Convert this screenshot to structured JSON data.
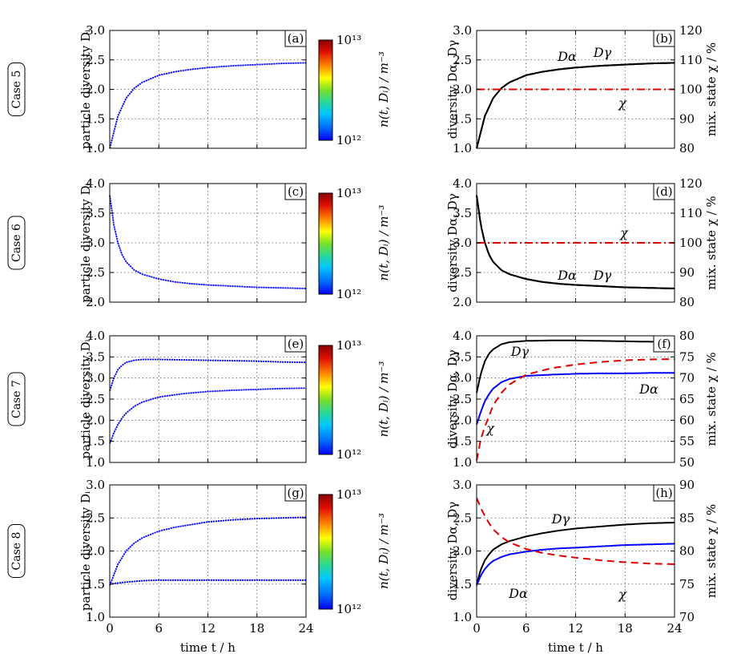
{
  "colors": {
    "dark_blue": "#0000ff",
    "red": "#e00000",
    "black": "#000000"
  },
  "colorbar": {
    "top_label": "10¹³",
    "bottom_label": "10¹²",
    "axis_label": "n(t, Dᵢ) / m⁻³",
    "stops": [
      "#0000ff",
      "#0070ff",
      "#00c8ff",
      "#28d898",
      "#78e028",
      "#ffff00",
      "#ff8000",
      "#e01000",
      "#8b0000"
    ]
  },
  "x_axis": {
    "ticks": [
      "0",
      "6",
      "12",
      "18",
      "24"
    ],
    "label": "time t / h",
    "range": [
      0,
      24
    ]
  },
  "rows": [
    {
      "case": "Case 5",
      "left": {
        "letter": "(a)",
        "ylabel": "particle diversity Dᵢ",
        "ylim": [
          1.0,
          3.0
        ],
        "yticks": [
          "1.0",
          "1.5",
          "2.0",
          "2.5",
          "3.0"
        ]
      },
      "right": {
        "letter": "(b)",
        "ylabel": "diversity Dα, Dγ",
        "ylim": [
          1.0,
          3.0
        ],
        "yticks": [
          "1.0",
          "1.5",
          "2.0",
          "2.5",
          "3.0"
        ],
        "y2label": "mix. state χ / %",
        "y2lim": [
          80,
          120
        ],
        "y2ticks": [
          "80",
          "90",
          "100",
          "110",
          "120"
        ],
        "annotations": [
          "Dα",
          "Dγ",
          "χ"
        ]
      }
    },
    {
      "case": "Case 6",
      "left": {
        "letter": "(c)",
        "ylabel": "particle diversity Dᵢ",
        "ylim": [
          2.0,
          4.0
        ],
        "yticks": [
          "2.0",
          "2.5",
          "3.0",
          "3.5",
          "4.0"
        ]
      },
      "right": {
        "letter": "(d)",
        "ylabel": "diversity Dα, Dγ",
        "ylim": [
          2.0,
          4.0
        ],
        "yticks": [
          "2.0",
          "2.5",
          "3.0",
          "3.5",
          "4.0"
        ],
        "y2label": "mix. state χ / %",
        "y2lim": [
          80,
          120
        ],
        "y2ticks": [
          "80",
          "90",
          "100",
          "110",
          "120"
        ],
        "annotations": [
          "χ",
          "Dα",
          "Dγ"
        ]
      }
    },
    {
      "case": "Case 7",
      "left": {
        "letter": "(e)",
        "ylabel": "particle diversity Dᵢ",
        "ylim": [
          1.0,
          4.0
        ],
        "yticks": [
          "1.0",
          "1.5",
          "2.0",
          "2.5",
          "3.0",
          "3.5",
          "4.0"
        ]
      },
      "right": {
        "letter": "(f)",
        "ylabel": "diversity Dα, Dγ",
        "ylim": [
          1.0,
          4.0
        ],
        "yticks": [
          "1.0",
          "1.5",
          "2.0",
          "2.5",
          "3.0",
          "3.5",
          "4.0"
        ],
        "y2label": "mix. state χ / %",
        "y2lim": [
          50,
          80
        ],
        "y2ticks": [
          "50",
          "55",
          "60",
          "65",
          "70",
          "75",
          "80"
        ],
        "annotations": [
          "Dγ",
          "Dα",
          "χ"
        ]
      }
    },
    {
      "case": "Case 8",
      "left": {
        "letter": "(g)",
        "ylabel": "particle diversity Dᵢ",
        "ylim": [
          1.0,
          3.0
        ],
        "yticks": [
          "1.0",
          "1.5",
          "2.0",
          "2.5",
          "3.0"
        ]
      },
      "right": {
        "letter": "(h)",
        "ylabel": "diversity Dα, Dγ",
        "ylim": [
          1.0,
          3.0
        ],
        "yticks": [
          "1.0",
          "1.5",
          "2.0",
          "2.5",
          "3.0"
        ],
        "y2label": "mix. state χ / %",
        "y2lim": [
          70,
          90
        ],
        "y2ticks": [
          "70",
          "75",
          "80",
          "85",
          "90"
        ],
        "annotations": [
          "Dγ",
          "Dα",
          "χ"
        ]
      }
    }
  ],
  "chart_data": [
    {
      "panel": "(a)",
      "type": "scatter",
      "ylabel": "particle diversity Dᵢ",
      "xlabel": "",
      "xlim": [
        0,
        24
      ],
      "ylim": [
        1.0,
        3.0
      ],
      "series": [
        {
          "x": [
            0,
            1,
            2,
            3,
            4,
            6,
            8,
            10,
            12,
            15,
            18,
            21,
            24
          ],
          "y": [
            1.0,
            1.55,
            1.85,
            2.02,
            2.12,
            2.24,
            2.3,
            2.34,
            2.37,
            2.4,
            2.42,
            2.44,
            2.45
          ]
        }
      ]
    },
    {
      "panel": "(b)",
      "type": "line",
      "ylabel": "diversity Dα, Dγ",
      "y2label": "mix. state χ / %",
      "xlim": [
        0,
        24
      ],
      "ylim": [
        1.0,
        3.0
      ],
      "y2lim": [
        80,
        120
      ],
      "series": [
        {
          "name": "Dα",
          "x": [
            0,
            1,
            2,
            3,
            4,
            6,
            8,
            10,
            12,
            15,
            18,
            21,
            24
          ],
          "y": [
            1.0,
            1.55,
            1.85,
            2.02,
            2.12,
            2.24,
            2.3,
            2.34,
            2.37,
            2.4,
            2.42,
            2.44,
            2.45
          ]
        },
        {
          "name": "Dγ",
          "x": [
            0,
            1,
            2,
            3,
            4,
            6,
            8,
            10,
            12,
            15,
            18,
            21,
            24
          ],
          "y": [
            1.0,
            1.55,
            1.85,
            2.02,
            2.12,
            2.24,
            2.3,
            2.34,
            2.37,
            2.4,
            2.42,
            2.44,
            2.45
          ]
        },
        {
          "name": "χ",
          "axis": "right",
          "x": [
            0,
            24
          ],
          "y": [
            100,
            100
          ]
        }
      ]
    },
    {
      "panel": "(c)",
      "type": "scatter",
      "ylabel": "particle diversity Dᵢ",
      "xlabel": "",
      "xlim": [
        0,
        24
      ],
      "ylim": [
        2.0,
        4.0
      ],
      "series": [
        {
          "x": [
            0,
            0.5,
            1,
            1.5,
            2,
            3,
            4,
            6,
            8,
            10,
            12,
            15,
            18,
            21,
            24
          ],
          "y": [
            3.8,
            3.3,
            3.0,
            2.8,
            2.68,
            2.54,
            2.47,
            2.39,
            2.34,
            2.31,
            2.29,
            2.27,
            2.25,
            2.24,
            2.23
          ]
        }
      ]
    },
    {
      "panel": "(d)",
      "type": "line",
      "ylabel": "diversity Dα, Dγ",
      "y2label": "mix. state χ / %",
      "xlim": [
        0,
        24
      ],
      "ylim": [
        2.0,
        4.0
      ],
      "y2lim": [
        80,
        120
      ],
      "series": [
        {
          "name": "Dα",
          "x": [
            0,
            0.5,
            1,
            1.5,
            2,
            3,
            4,
            6,
            8,
            10,
            12,
            15,
            18,
            21,
            24
          ],
          "y": [
            3.8,
            3.3,
            3.0,
            2.8,
            2.68,
            2.54,
            2.47,
            2.39,
            2.34,
            2.31,
            2.29,
            2.27,
            2.25,
            2.24,
            2.23
          ]
        },
        {
          "name": "Dγ",
          "x": [
            0,
            0.5,
            1,
            1.5,
            2,
            3,
            4,
            6,
            8,
            10,
            12,
            15,
            18,
            21,
            24
          ],
          "y": [
            3.8,
            3.3,
            3.0,
            2.8,
            2.68,
            2.54,
            2.47,
            2.39,
            2.34,
            2.31,
            2.29,
            2.27,
            2.25,
            2.24,
            2.23
          ]
        },
        {
          "name": "χ",
          "axis": "right",
          "x": [
            0,
            24
          ],
          "y": [
            100,
            100
          ]
        }
      ]
    },
    {
      "panel": "(e)",
      "type": "scatter",
      "ylabel": "particle diversity Dᵢ",
      "xlabel": "",
      "xlim": [
        0,
        24
      ],
      "ylim": [
        1.0,
        4.0
      ],
      "series": [
        {
          "x": [
            0,
            0.5,
            1,
            1.5,
            2,
            3,
            4,
            6,
            9,
            12,
            15,
            18,
            21,
            24
          ],
          "y": [
            2.7,
            3.0,
            3.2,
            3.3,
            3.37,
            3.42,
            3.44,
            3.44,
            3.43,
            3.42,
            3.41,
            3.4,
            3.38,
            3.37
          ]
        },
        {
          "x": [
            0,
            0.5,
            1,
            1.5,
            2,
            3,
            4,
            6,
            9,
            12,
            15,
            18,
            21,
            24
          ],
          "y": [
            1.45,
            1.7,
            1.9,
            2.05,
            2.17,
            2.33,
            2.43,
            2.55,
            2.63,
            2.68,
            2.71,
            2.73,
            2.75,
            2.76
          ]
        }
      ]
    },
    {
      "panel": "(f)",
      "type": "line",
      "ylabel": "diversity Dα, Dγ",
      "y2label": "mix. state χ / %",
      "xlim": [
        0,
        24
      ],
      "ylim": [
        1.0,
        4.0
      ],
      "y2lim": [
        50,
        80
      ],
      "series": [
        {
          "name": "Dγ",
          "x": [
            0,
            0.5,
            1,
            1.5,
            2,
            3,
            4,
            6,
            9,
            12,
            15,
            18,
            21,
            24
          ],
          "y": [
            2.65,
            3.1,
            3.4,
            3.58,
            3.68,
            3.8,
            3.85,
            3.88,
            3.89,
            3.89,
            3.88,
            3.87,
            3.86,
            3.86
          ]
        },
        {
          "name": "Dα",
          "x": [
            0,
            0.5,
            1,
            1.5,
            2,
            3,
            4,
            6,
            9,
            12,
            15,
            18,
            21,
            24
          ],
          "y": [
            1.9,
            2.2,
            2.45,
            2.62,
            2.75,
            2.9,
            2.98,
            3.05,
            3.08,
            3.1,
            3.11,
            3.11,
            3.12,
            3.12
          ]
        },
        {
          "name": "χ",
          "axis": "right",
          "x": [
            0,
            0.5,
            1,
            1.5,
            2,
            3,
            4,
            6,
            9,
            12,
            15,
            18,
            21,
            24
          ],
          "y": [
            50.5,
            55.5,
            58.5,
            61,
            63.5,
            66.5,
            68.5,
            70.8,
            72.3,
            73.2,
            73.8,
            74.2,
            74.4,
            74.5
          ]
        }
      ]
    },
    {
      "panel": "(g)",
      "type": "scatter",
      "ylabel": "particle diversity Dᵢ",
      "xlabel": "time t / h",
      "xlim": [
        0,
        24
      ],
      "ylim": [
        1.0,
        3.0
      ],
      "series": [
        {
          "x": [
            0,
            1,
            2,
            3,
            4,
            6,
            8,
            10,
            12,
            15,
            18,
            21,
            24
          ],
          "y": [
            1.48,
            1.8,
            2.0,
            2.12,
            2.2,
            2.3,
            2.36,
            2.4,
            2.44,
            2.47,
            2.49,
            2.5,
            2.51
          ]
        },
        {
          "x": [
            0,
            2,
            4,
            6,
            12,
            18,
            24
          ],
          "y": [
            1.5,
            1.53,
            1.55,
            1.56,
            1.56,
            1.56,
            1.56
          ]
        }
      ]
    },
    {
      "panel": "(h)",
      "type": "line",
      "ylabel": "diversity Dα, Dγ",
      "y2label": "mix. state χ / %",
      "xlabel": "time t / h",
      "xlim": [
        0,
        24
      ],
      "ylim": [
        1.0,
        3.0
      ],
      "y2lim": [
        70,
        90
      ],
      "series": [
        {
          "name": "Dγ",
          "x": [
            0,
            0.5,
            1,
            1.5,
            2,
            3,
            4,
            6,
            8,
            10,
            12,
            15,
            18,
            21,
            24
          ],
          "y": [
            1.5,
            1.72,
            1.86,
            1.95,
            2.02,
            2.1,
            2.15,
            2.22,
            2.27,
            2.31,
            2.34,
            2.37,
            2.4,
            2.42,
            2.43
          ]
        },
        {
          "name": "Dα",
          "x": [
            0,
            0.5,
            1,
            1.5,
            2,
            3,
            4,
            6,
            8,
            10,
            12,
            15,
            18,
            21,
            24
          ],
          "y": [
            1.48,
            1.63,
            1.73,
            1.8,
            1.85,
            1.91,
            1.95,
            1.99,
            2.02,
            2.04,
            2.05,
            2.07,
            2.09,
            2.1,
            2.11
          ]
        },
        {
          "name": "χ",
          "axis": "right",
          "x": [
            0,
            0.5,
            1,
            1.5,
            2,
            3,
            4,
            6,
            8,
            10,
            12,
            15,
            18,
            21,
            24
          ],
          "y": [
            88,
            86.5,
            85.3,
            84.2,
            83.3,
            82.1,
            81.3,
            80.3,
            79.7,
            79.3,
            79,
            78.6,
            78.3,
            78.1,
            78
          ]
        }
      ]
    }
  ]
}
